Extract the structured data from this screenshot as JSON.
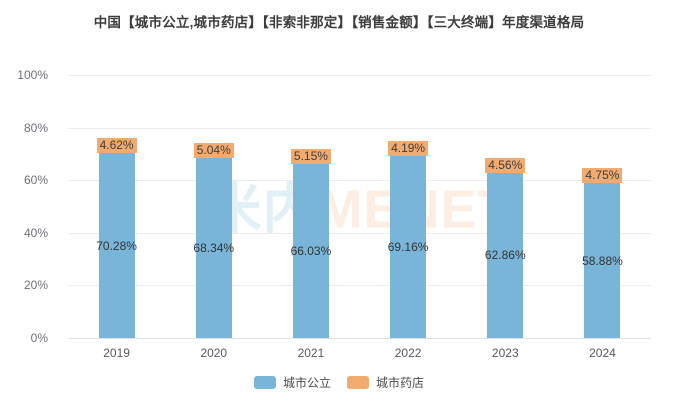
{
  "title": "中国【城市公立,城市药店】【非索非那定】【销售金额】【三大终端】年度渠道格局",
  "watermark": {
    "zh": "米内",
    "en": "MENET"
  },
  "chart_data": {
    "type": "bar",
    "stacked": true,
    "title": "中国【城市公立,城市药店】【非索非那定】【销售金额】【三大终端】年度渠道格局",
    "categories": [
      "2019",
      "2020",
      "2021",
      "2022",
      "2023",
      "2024"
    ],
    "series": [
      {
        "name": "城市公立",
        "color": "#78b5d8",
        "values": [
          70.28,
          68.34,
          66.03,
          69.16,
          62.86,
          58.88
        ],
        "labels": [
          "70.28%",
          "68.34%",
          "66.03%",
          "69.16%",
          "62.86%",
          "58.88%"
        ],
        "label_position": "inside-center"
      },
      {
        "name": "城市药店",
        "color": "#f1aa70",
        "values": [
          4.62,
          5.04,
          5.15,
          4.19,
          4.56,
          4.75
        ],
        "labels": [
          "4.62%",
          "5.04%",
          "5.15%",
          "4.19%",
          "4.56%",
          "4.75%"
        ],
        "label_position": "top-with-background"
      }
    ],
    "y_ticks": [
      "0%",
      "20%",
      "40%",
      "60%",
      "80%",
      "100%"
    ],
    "y_tick_values": [
      0,
      20,
      40,
      60,
      80,
      100
    ],
    "ylim": [
      0,
      100
    ],
    "xlabel": "",
    "ylabel": "",
    "grid": true,
    "legend_position": "bottom",
    "colors": {
      "grid_line": "#ececec",
      "axis_line": "#e0e0e0",
      "tick_text": "#6e7079",
      "label_text": "#333333"
    }
  }
}
